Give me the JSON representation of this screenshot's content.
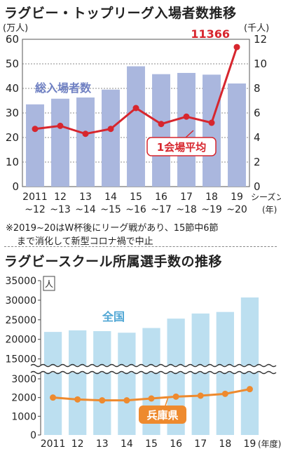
{
  "chart_data": [
    {
      "type": "bar+line",
      "title": "ラグビー・トップリーグ入場者数推移",
      "left_unit": "(万人)",
      "right_unit": "(千人)",
      "x_unit_1": "シーズン",
      "x_unit_2": "(年)",
      "categories_top": [
        "2011",
        "12",
        "13",
        "14",
        "15",
        "16",
        "17",
        "18",
        "19"
      ],
      "categories_bottom": [
        "~12",
        "~13",
        "~14",
        "~15",
        "~16",
        "~17",
        "~18",
        "~19",
        "~20"
      ],
      "left_ticks": [
        "0",
        "10",
        "20",
        "30",
        "40",
        "50",
        "60"
      ],
      "right_ticks": [
        "0",
        "2",
        "4",
        "6",
        "8",
        "10",
        "12"
      ],
      "ylim_left": [
        0,
        60
      ],
      "ylim_right": [
        0,
        12
      ],
      "series": [
        {
          "name": "総入場者数",
          "axis": "left",
          "type": "bar",
          "color": "#aab7de",
          "values": [
            33.5,
            35.8,
            36.3,
            39.5,
            49.0,
            45.8,
            46.3,
            45.6,
            42.0
          ]
        },
        {
          "name": "1会場平均",
          "axis": "right",
          "type": "line",
          "color": "#d7262e",
          "values": [
            4.7,
            4.95,
            4.3,
            4.7,
            6.4,
            5.1,
            5.7,
            5.2,
            11.366
          ]
        }
      ],
      "annotation": "11366",
      "footnote_line1": "※2019~20はW杯後にリーグ戦があり、15節中6節",
      "footnote_line2": "まで消化して新型コロナ禍で中止"
    },
    {
      "type": "bar+line",
      "title": "ラグビースクール所属選手数の推移",
      "y_unit": "人",
      "x_unit": "(年度)",
      "categories": [
        "2011",
        "12",
        "13",
        "14",
        "15",
        "16",
        "17",
        "18",
        "19"
      ],
      "upper_ticks": [
        "15000",
        "20000",
        "25000",
        "30000",
        "35000"
      ],
      "lower_ticks": [
        "0",
        "1000",
        "2000",
        "3000"
      ],
      "ylim_upper": [
        13500,
        35000
      ],
      "ylim_lower": [
        0,
        3300
      ],
      "series": [
        {
          "name": "全国",
          "type": "bar",
          "color": "#bcdff0",
          "values": [
            21900,
            22300,
            22100,
            21700,
            22900,
            25300,
            26600,
            27000,
            30700
          ]
        },
        {
          "name": "兵庫県",
          "type": "line",
          "color": "#ee8a2e",
          "values": [
            2000,
            1900,
            1850,
            1850,
            1950,
            2050,
            2100,
            2200,
            2450
          ]
        }
      ]
    }
  ]
}
